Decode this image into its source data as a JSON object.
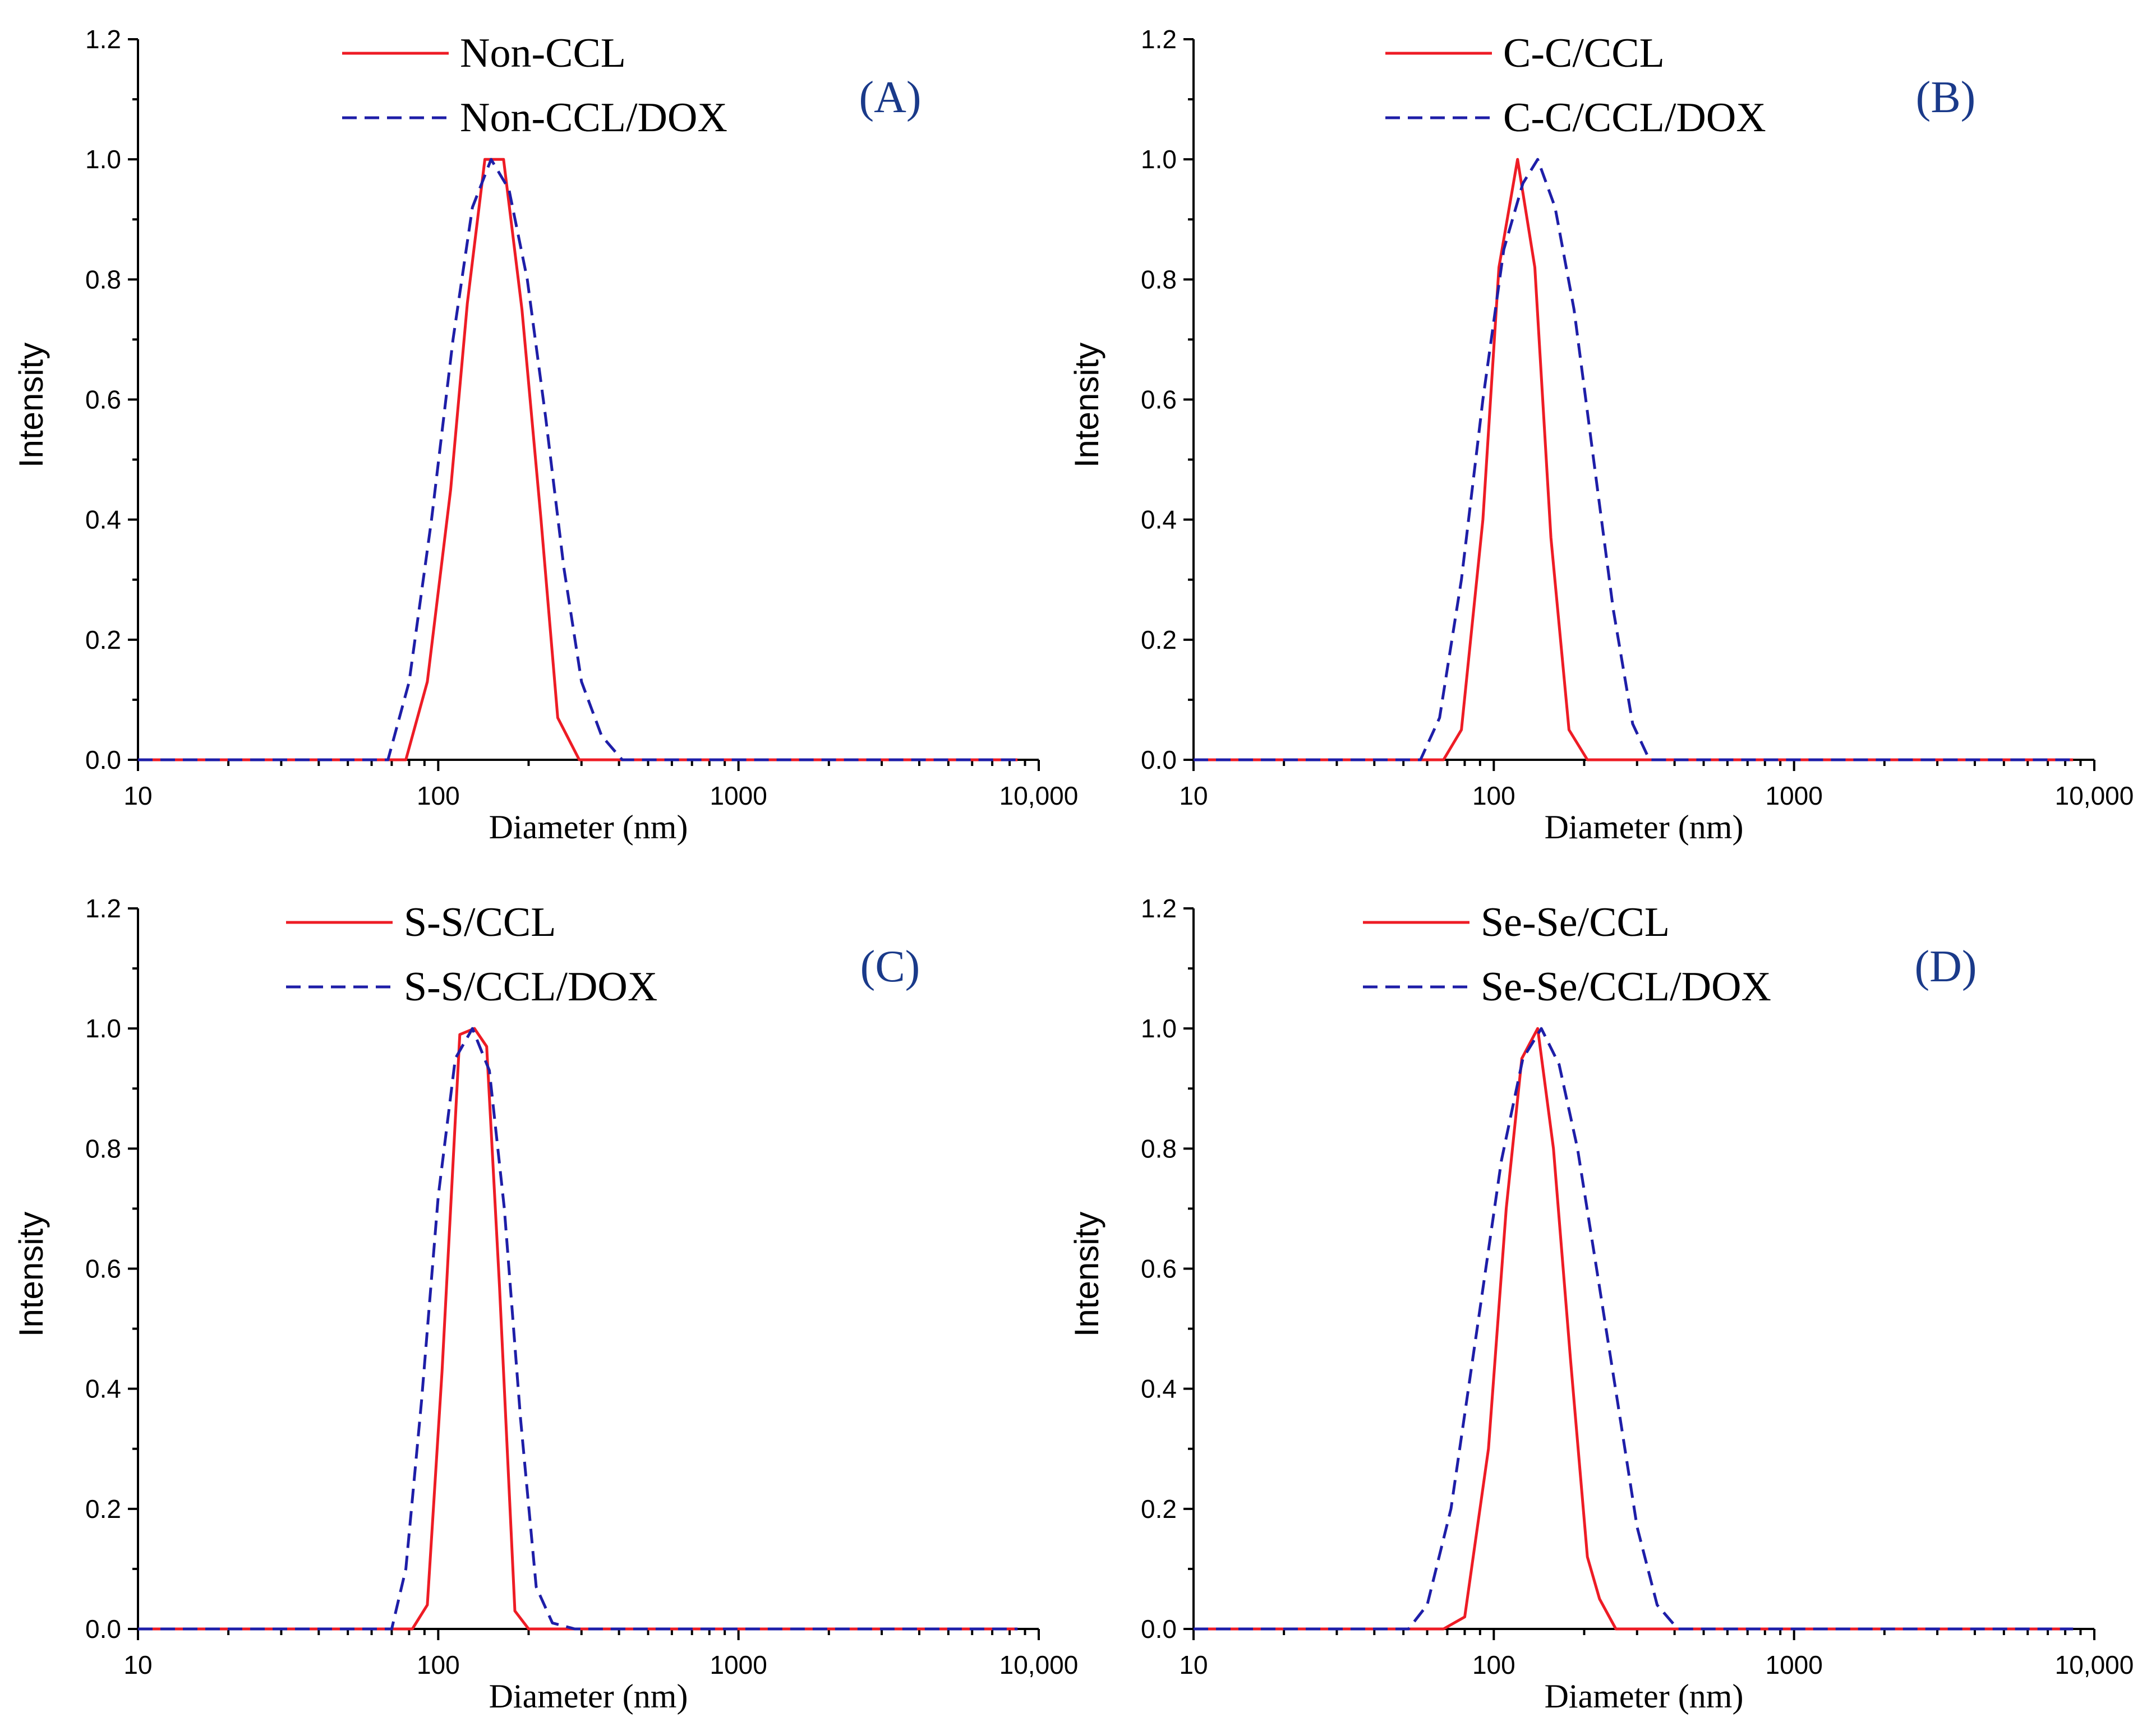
{
  "chart_data": [
    {
      "type": "line",
      "panel": "(A)",
      "xscale": "log",
      "xlim": [
        10,
        10000
      ],
      "ylim": [
        0,
        1.2
      ],
      "xlabel": "Diameter (nm)",
      "ylabel": "Intensity",
      "xticks": [
        "10",
        "100",
        "1000",
        "10,000"
      ],
      "yticks": [
        "0.0",
        "0.2",
        "0.4",
        "0.6",
        "0.8",
        "1.0",
        "1.2"
      ],
      "legend_position": "top-center",
      "series": [
        {
          "name": "Non-CCL",
          "color": "#ee1c25",
          "style": "solid",
          "x": [
            10,
            78,
            92,
            110,
            125,
            143,
            165,
            190,
            220,
            250,
            295,
            8500
          ],
          "y": [
            0,
            0,
            0.13,
            0.45,
            0.76,
            1.0,
            1.0,
            0.75,
            0.4,
            0.07,
            0,
            0
          ]
        },
        {
          "name": "Non-CCL/DOX",
          "color": "#1e1ea8",
          "style": "dashed",
          "x": [
            10,
            68,
            80,
            95,
            112,
            130,
            150,
            172,
            198,
            228,
            262,
            300,
            350,
            410,
            8500
          ],
          "y": [
            0,
            0,
            0.13,
            0.4,
            0.7,
            0.92,
            1.0,
            0.95,
            0.8,
            0.57,
            0.32,
            0.13,
            0.04,
            0,
            0
          ]
        }
      ]
    },
    {
      "type": "line",
      "panel": "(B)",
      "xscale": "log",
      "xlim": [
        10,
        10000
      ],
      "ylim": [
        0,
        1.2
      ],
      "xlabel": "Diameter (nm)",
      "ylabel": "Intensity",
      "xticks": [
        "10",
        "100",
        "1000",
        "10,000"
      ],
      "yticks": [
        "0.0",
        "0.2",
        "0.4",
        "0.6",
        "0.8",
        "1.0",
        "1.2"
      ],
      "legend_position": "top-center",
      "series": [
        {
          "name": "C-C/CCL",
          "color": "#ee1c25",
          "style": "solid",
          "x": [
            10,
            68,
            78,
            92,
            104,
            120,
            137,
            155,
            178,
            205,
            8500
          ],
          "y": [
            0,
            0,
            0.05,
            0.4,
            0.82,
            1.0,
            0.82,
            0.37,
            0.05,
            0,
            0
          ]
        },
        {
          "name": "C-C/CCL/DOX",
          "color": "#1e1ea8",
          "style": "dashed",
          "x": [
            10,
            57,
            66,
            78,
            92,
            108,
            125,
            140,
            160,
            185,
            215,
            250,
            290,
            330,
            8500
          ],
          "y": [
            0,
            0,
            0.07,
            0.3,
            0.6,
            0.85,
            0.96,
            1.0,
            0.92,
            0.75,
            0.5,
            0.25,
            0.06,
            0,
            0
          ]
        }
      ]
    },
    {
      "type": "line",
      "panel": "(C)",
      "xscale": "log",
      "xlim": [
        10,
        10000
      ],
      "ylim": [
        0,
        1.2
      ],
      "xlabel": "Diameter (nm)",
      "ylabel": "Intensity",
      "xticks": [
        "10",
        "100",
        "1000",
        "10,000"
      ],
      "yticks": [
        "0.0",
        "0.2",
        "0.4",
        "0.6",
        "0.8",
        "1.0",
        "1.2"
      ],
      "legend_position": "top-center",
      "series": [
        {
          "name": "S-S/CCL",
          "color": "#ee1c25",
          "style": "solid",
          "x": [
            10,
            82,
            92,
            103,
            118,
            132,
            145,
            160,
            180,
            200,
            8500
          ],
          "y": [
            0,
            0,
            0.04,
            0.43,
            0.99,
            1.0,
            0.97,
            0.57,
            0.03,
            0,
            0
          ]
        },
        {
          "name": "S-S/CCL/DOX",
          "color": "#1e1ea8",
          "style": "dashed",
          "x": [
            10,
            70,
            78,
            88,
            100,
            114,
            130,
            148,
            166,
            188,
            212,
            240,
            285,
            8500
          ],
          "y": [
            0,
            0,
            0.1,
            0.38,
            0.72,
            0.95,
            1.0,
            0.93,
            0.7,
            0.35,
            0.07,
            0.01,
            0,
            0
          ]
        }
      ]
    },
    {
      "type": "line",
      "panel": "(D)",
      "xscale": "log",
      "xlim": [
        10,
        10000
      ],
      "ylim": [
        0,
        1.2
      ],
      "xlabel": "Diameter (nm)",
      "ylabel": "Intensity",
      "xticks": [
        "10",
        "100",
        "1000",
        "10,000"
      ],
      "yticks": [
        "0.0",
        "0.2",
        "0.4",
        "0.6",
        "0.8",
        "1.0",
        "1.2"
      ],
      "legend_position": "top-center",
      "series": [
        {
          "name": "Se-Se/CCL",
          "color": "#ee1c25",
          "style": "solid",
          "x": [
            10,
            68,
            80,
            96,
            110,
            124,
            140,
            158,
            180,
            205,
            225,
            255,
            8500
          ],
          "y": [
            0,
            0,
            0.02,
            0.3,
            0.7,
            0.95,
            1.0,
            0.8,
            0.45,
            0.12,
            0.05,
            0,
            0
          ]
        },
        {
          "name": "Se-Se/CCL/DOX",
          "color": "#1e1ea8",
          "style": "dashed",
          "x": [
            10,
            52,
            60,
            72,
            88,
            106,
            125,
            144,
            165,
            190,
            220,
            258,
            300,
            350,
            410,
            8500
          ],
          "y": [
            0,
            0,
            0.04,
            0.2,
            0.5,
            0.78,
            0.95,
            1.0,
            0.94,
            0.8,
            0.6,
            0.38,
            0.17,
            0.04,
            0,
            0
          ]
        }
      ]
    }
  ]
}
